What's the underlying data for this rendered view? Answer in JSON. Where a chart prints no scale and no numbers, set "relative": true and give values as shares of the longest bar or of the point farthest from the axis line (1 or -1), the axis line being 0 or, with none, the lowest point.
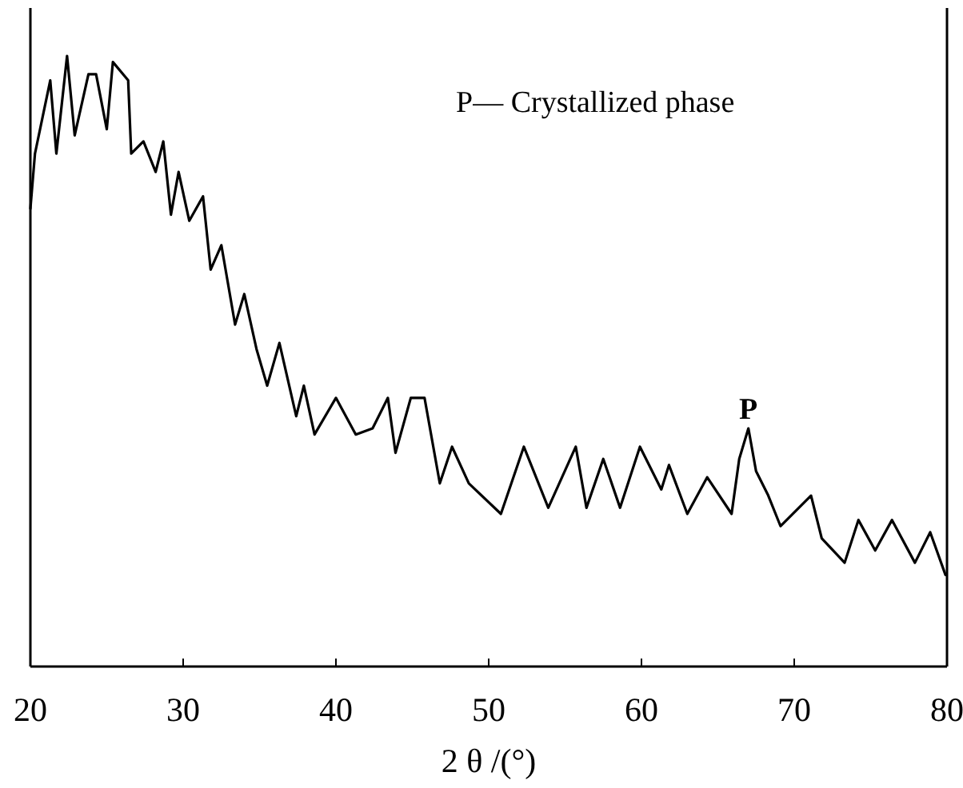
{
  "chart_data": {
    "type": "line",
    "relative": true,
    "xlabel": "2 θ /(°)",
    "xlim": [
      20,
      80
    ],
    "xticks": [
      20,
      30,
      40,
      50,
      60,
      70,
      80
    ],
    "grid": false,
    "line_style": "solid",
    "annotations": [
      "P— Crystallized phase",
      {
        "text": "P",
        "x": 67,
        "y": 0.39
      }
    ],
    "series": [
      {
        "color": "#000000",
        "x": [
          20.0,
          20.3,
          20.8,
          21.3,
          21.7,
          22.4,
          22.9,
          23.8,
          24.3,
          25.0,
          25.4,
          26.4,
          26.6,
          27.4,
          28.2,
          28.7,
          29.2,
          29.7,
          30.4,
          31.3,
          31.8,
          32.5,
          33.4,
          34.0,
          34.8,
          35.5,
          36.3,
          37.4,
          37.9,
          38.6,
          40.0,
          41.3,
          42.4,
          43.4,
          43.9,
          44.9,
          45.8,
          46.8,
          47.6,
          48.7,
          50.8,
          52.3,
          53.9,
          55.7,
          56.4,
          57.5,
          58.6,
          59.9,
          61.3,
          61.8,
          63.0,
          64.3,
          65.9,
          66.4,
          67.0,
          67.5,
          68.3,
          69.1,
          71.1,
          71.8,
          73.3,
          74.2,
          75.3,
          76.4,
          77.9,
          78.9,
          79.9
        ],
        "values": [
          0.75,
          0.84,
          0.9,
          0.96,
          0.84,
          1,
          0.87,
          0.97,
          0.97,
          0.88,
          0.99,
          0.96,
          0.84,
          0.86,
          0.81,
          0.86,
          0.74,
          0.81,
          0.73,
          0.77,
          0.65,
          0.69,
          0.56,
          0.61,
          0.52,
          0.46,
          0.53,
          0.41,
          0.46,
          0.38,
          0.44,
          0.38,
          0.39,
          0.44,
          0.35,
          0.44,
          0.44,
          0.3,
          0.36,
          0.3,
          0.25,
          0.36,
          0.26,
          0.36,
          0.26,
          0.34,
          0.26,
          0.36,
          0.29,
          0.33,
          0.25,
          0.31,
          0.25,
          0.34,
          0.39,
          0.32,
          0.28,
          0.23,
          0.28,
          0.21,
          0.17,
          0.24,
          0.19,
          0.24,
          0.17,
          0.22,
          0.15
        ]
      }
    ]
  }
}
